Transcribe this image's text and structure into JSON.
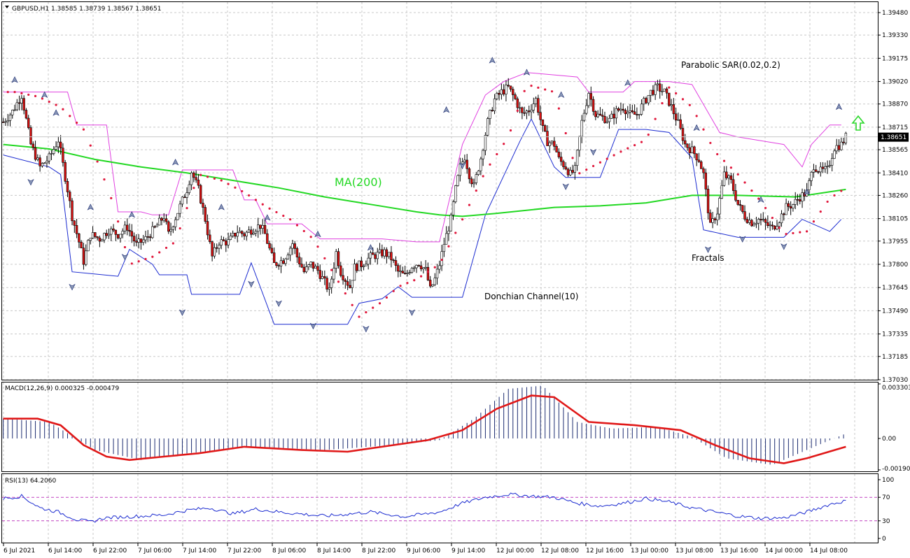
{
  "chart_data": {
    "type": "candlestick",
    "symbol_header": "GBPUSD,H1  1.38585 1.38739 1.38567 1.38651",
    "current_price_label": "1.38651",
    "current_price": 1.38651,
    "price_axis": {
      "ylim": [
        1.3703,
        1.3955
      ],
      "ticks": [
        "1.39480",
        "1.39330",
        "1.39175",
        "1.39020",
        "1.38870",
        "1.38715",
        "1.38565",
        "1.38410",
        "1.38260",
        "1.38105",
        "1.37955",
        "1.37800",
        "1.37645",
        "1.37490",
        "1.37335",
        "1.37185",
        "1.37030"
      ]
    },
    "x_tick_labels": [
      "6 Jul 2021",
      "6 Jul 14:00",
      "6 Jul 22:00",
      "7 Jul 06:00",
      "7 Jul 14:00",
      "7 Jul 22:00",
      "8 Jul 06:00",
      "8 Jul 14:00",
      "8 Jul 22:00",
      "9 Jul 06:00",
      "9 Jul 14:00",
      "12 Jul 00:00",
      "12 Jul 08:00",
      "12 Jul 16:00",
      "13 Jul 00:00",
      "13 Jul 08:00",
      "13 Jul 16:00",
      "14 Jul 00:00",
      "14 Jul 08:00"
    ],
    "annotations": {
      "ma": "MA(200)",
      "sar": "Parabolic SAR(0.02,0.2)",
      "fractals": "Fractals",
      "donchian": "Donchian Channel(10)"
    },
    "close_path": [
      [
        0,
        1.3875
      ],
      [
        4,
        1.3882
      ],
      [
        8,
        1.3893
      ],
      [
        12,
        1.386
      ],
      [
        16,
        1.3845
      ],
      [
        20,
        1.3851
      ],
      [
        24,
        1.3863
      ],
      [
        28,
        1.383
      ],
      [
        30,
        1.3812
      ],
      [
        33,
        1.3795
      ],
      [
        35,
        1.3782
      ],
      [
        38,
        1.38
      ],
      [
        42,
        1.3797
      ],
      [
        46,
        1.3803
      ],
      [
        50,
        1.38
      ],
      [
        54,
        1.3805
      ],
      [
        58,
        1.3793
      ],
      [
        62,
        1.3797
      ],
      [
        66,
        1.3804
      ],
      [
        70,
        1.3812
      ],
      [
        72,
        1.38
      ],
      [
        76,
        1.3815
      ],
      [
        80,
        1.383
      ],
      [
        82,
        1.3842
      ],
      [
        85,
        1.383
      ],
      [
        88,
        1.381
      ],
      [
        91,
        1.3785
      ],
      [
        94,
        1.3795
      ],
      [
        98,
        1.3795
      ],
      [
        102,
        1.3802
      ],
      [
        105,
        1.38
      ],
      [
        108,
        1.3803
      ],
      [
        112,
        1.3806
      ],
      [
        114,
        1.38
      ],
      [
        116,
        1.379
      ],
      [
        118,
        1.378
      ],
      [
        122,
        1.3783
      ],
      [
        126,
        1.3794
      ],
      [
        128,
        1.3785
      ],
      [
        131,
        1.3775
      ],
      [
        134,
        1.378
      ],
      [
        137,
        1.3776
      ],
      [
        140,
        1.3768
      ],
      [
        142,
        1.3762
      ],
      [
        145,
        1.3788
      ],
      [
        147,
        1.3775
      ],
      [
        149,
        1.377
      ],
      [
        151,
        1.3765
      ],
      [
        153,
        1.3778
      ],
      [
        156,
        1.378
      ],
      [
        160,
        1.3785
      ],
      [
        164,
        1.3787
      ],
      [
        166,
        1.3788
      ],
      [
        169,
        1.3784
      ],
      [
        172,
        1.3775
      ],
      [
        175,
        1.3772
      ],
      [
        178,
        1.3779
      ],
      [
        181,
        1.3781
      ],
      [
        184,
        1.3776
      ],
      [
        186,
        1.3763
      ],
      [
        188,
        1.377
      ],
      [
        190,
        1.378
      ],
      [
        192,
        1.3794
      ],
      [
        195,
        1.381
      ],
      [
        197,
        1.383
      ],
      [
        199,
        1.3845
      ],
      [
        201,
        1.3852
      ],
      [
        203,
        1.384
      ],
      [
        205,
        1.3832
      ],
      [
        208,
        1.3851
      ],
      [
        211,
        1.3875
      ],
      [
        214,
        1.389
      ],
      [
        217,
        1.3895
      ],
      [
        220,
        1.3898
      ],
      [
        223,
        1.389
      ],
      [
        226,
        1.388
      ],
      [
        229,
        1.3883
      ],
      [
        232,
        1.389
      ],
      [
        235,
        1.387
      ],
      [
        237,
        1.3862
      ],
      [
        240,
        1.386
      ],
      [
        242,
        1.385
      ],
      [
        245,
        1.3845
      ],
      [
        247,
        1.384
      ],
      [
        249,
        1.3843
      ],
      [
        252,
        1.3875
      ],
      [
        255,
        1.3895
      ],
      [
        258,
        1.388
      ],
      [
        261,
        1.3878
      ],
      [
        264,
        1.3876
      ],
      [
        267,
        1.3882
      ],
      [
        270,
        1.3885
      ],
      [
        273,
        1.388
      ],
      [
        276,
        1.388
      ],
      [
        279,
        1.3888
      ],
      [
        282,
        1.3895
      ],
      [
        285,
        1.3898
      ],
      [
        288,
        1.3895
      ],
      [
        291,
        1.3885
      ],
      [
        294,
        1.3874
      ],
      [
        297,
        1.386
      ],
      [
        300,
        1.3856
      ],
      [
        303,
        1.385
      ],
      [
        305,
        1.384
      ],
      [
        308,
        1.3805
      ],
      [
        311,
        1.3815
      ],
      [
        314,
        1.384
      ],
      [
        317,
        1.3835
      ],
      [
        320,
        1.382
      ],
      [
        323,
        1.3812
      ],
      [
        326,
        1.3808
      ],
      [
        329,
        1.381
      ],
      [
        332,
        1.3807
      ],
      [
        335,
        1.3804
      ],
      [
        338,
        1.381
      ],
      [
        341,
        1.3818
      ],
      [
        344,
        1.382
      ],
      [
        347,
        1.3825
      ],
      [
        350,
        1.3828
      ],
      [
        353,
        1.3846
      ],
      [
        356,
        1.3842
      ],
      [
        359,
        1.3843
      ],
      [
        362,
        1.3858
      ],
      [
        365,
        1.386
      ],
      [
        367,
        1.3865
      ]
    ],
    "ma200": [
      [
        0,
        1.386
      ],
      [
        20,
        1.3857
      ],
      [
        40,
        1.385
      ],
      [
        60,
        1.3845
      ],
      [
        80,
        1.3841
      ],
      [
        100,
        1.3836
      ],
      [
        120,
        1.3831
      ],
      [
        140,
        1.3825
      ],
      [
        160,
        1.382
      ],
      [
        180,
        1.3815
      ],
      [
        190,
        1.3813
      ],
      [
        200,
        1.3812
      ],
      [
        215,
        1.3814
      ],
      [
        240,
        1.3818
      ],
      [
        260,
        1.3819
      ],
      [
        280,
        1.3821
      ],
      [
        300,
        1.3826
      ],
      [
        320,
        1.3826
      ],
      [
        345,
        1.3825
      ],
      [
        367,
        1.383
      ]
    ],
    "donchian_upper": [
      [
        0,
        1.3895
      ],
      [
        28,
        1.3895
      ],
      [
        32,
        1.3873
      ],
      [
        45,
        1.3873
      ],
      [
        50,
        1.3815
      ],
      [
        60,
        1.3815
      ],
      [
        65,
        1.3813
      ],
      [
        72,
        1.3813
      ],
      [
        78,
        1.3843
      ],
      [
        100,
        1.3843
      ],
      [
        105,
        1.3823
      ],
      [
        110,
        1.3823
      ],
      [
        115,
        1.3807
      ],
      [
        130,
        1.3807
      ],
      [
        138,
        1.3797
      ],
      [
        165,
        1.3797
      ],
      [
        180,
        1.3795
      ],
      [
        190,
        1.3795
      ],
      [
        200,
        1.386
      ],
      [
        210,
        1.3893
      ],
      [
        218,
        1.3902
      ],
      [
        228,
        1.3908
      ],
      [
        250,
        1.3905
      ],
      [
        255,
        1.3895
      ],
      [
        270,
        1.3895
      ],
      [
        275,
        1.3902
      ],
      [
        290,
        1.3902
      ],
      [
        300,
        1.39
      ],
      [
        312,
        1.3868
      ],
      [
        320,
        1.3865
      ],
      [
        340,
        1.386
      ],
      [
        348,
        1.3845
      ],
      [
        352,
        1.386
      ],
      [
        360,
        1.3873
      ],
      [
        365,
        1.3873
      ]
    ],
    "donchian_lower": [
      [
        0,
        1.3853
      ],
      [
        20,
        1.3845
      ],
      [
        25,
        1.384
      ],
      [
        30,
        1.3775
      ],
      [
        50,
        1.3772
      ],
      [
        55,
        1.379
      ],
      [
        65,
        1.378
      ],
      [
        68,
        1.3773
      ],
      [
        80,
        1.3773
      ],
      [
        82,
        1.376
      ],
      [
        103,
        1.376
      ],
      [
        108,
        1.3781
      ],
      [
        118,
        1.374
      ],
      [
        150,
        1.374
      ],
      [
        155,
        1.3754
      ],
      [
        165,
        1.3757
      ],
      [
        172,
        1.3765
      ],
      [
        178,
        1.3758
      ],
      [
        200,
        1.3758
      ],
      [
        210,
        1.3813
      ],
      [
        225,
        1.3862
      ],
      [
        230,
        1.3877
      ],
      [
        240,
        1.3845
      ],
      [
        245,
        1.3838
      ],
      [
        260,
        1.3838
      ],
      [
        268,
        1.387
      ],
      [
        280,
        1.387
      ],
      [
        290,
        1.3868
      ],
      [
        300,
        1.3851
      ],
      [
        305,
        1.3803
      ],
      [
        320,
        1.3798
      ],
      [
        340,
        1.3798
      ],
      [
        348,
        1.381
      ],
      [
        360,
        1.3802
      ],
      [
        365,
        1.381
      ]
    ],
    "sar": [
      [
        5,
        1.3895
      ],
      [
        15,
        1.3892
      ],
      [
        25,
        1.3885
      ],
      [
        35,
        1.387
      ],
      [
        42,
        1.3845
      ],
      [
        48,
        1.382
      ],
      [
        55,
        1.378
      ],
      [
        65,
        1.3785
      ],
      [
        75,
        1.3795
      ],
      [
        85,
        1.384
      ],
      [
        95,
        1.3836
      ],
      [
        105,
        1.3828
      ],
      [
        115,
        1.3818
      ],
      [
        125,
        1.381
      ],
      [
        135,
        1.3797
      ],
      [
        155,
        1.3745
      ],
      [
        165,
        1.3755
      ],
      [
        172,
        1.3765
      ],
      [
        180,
        1.377
      ],
      [
        190,
        1.378
      ],
      [
        200,
        1.381
      ],
      [
        210,
        1.3842
      ],
      [
        220,
        1.3865
      ],
      [
        228,
        1.39
      ],
      [
        240,
        1.3895
      ],
      [
        250,
        1.384
      ],
      [
        260,
        1.3848
      ],
      [
        270,
        1.3856
      ],
      [
        280,
        1.3863
      ],
      [
        290,
        1.3898
      ],
      [
        300,
        1.3885
      ],
      [
        310,
        1.3855
      ],
      [
        320,
        1.384
      ],
      [
        330,
        1.3822
      ],
      [
        340,
        1.38
      ],
      [
        350,
        1.3802
      ],
      [
        360,
        1.3824
      ],
      [
        366,
        1.383
      ]
    ],
    "fractal_highs": [
      [
        5,
        1.39
      ],
      [
        18,
        1.389
      ],
      [
        23,
        1.3878
      ],
      [
        38,
        1.3815
      ],
      [
        56,
        1.381
      ],
      [
        75,
        1.3845
      ],
      [
        95,
        1.3815
      ],
      [
        115,
        1.3808
      ],
      [
        137,
        1.3797
      ],
      [
        160,
        1.3788
      ],
      [
        193,
        1.388
      ],
      [
        213,
        1.3913
      ],
      [
        228,
        1.3905
      ],
      [
        243,
        1.389
      ],
      [
        272,
        1.3898
      ],
      [
        302,
        1.3868
      ],
      [
        330,
        1.382
      ],
      [
        350,
        1.3825
      ],
      [
        364,
        1.3882
      ]
    ],
    "fractal_lows": [
      [
        12,
        1.3838
      ],
      [
        30,
        1.3768
      ],
      [
        53,
        1.3788
      ],
      [
        78,
        1.3751
      ],
      [
        108,
        1.377
      ],
      [
        120,
        1.3757
      ],
      [
        135,
        1.3742
      ],
      [
        158,
        1.374
      ],
      [
        178,
        1.3751
      ],
      [
        200,
        1.3849
      ],
      [
        245,
        1.3835
      ],
      [
        257,
        1.3858
      ],
      [
        307,
        1.3793
      ],
      [
        322,
        1.38
      ],
      [
        340,
        1.3795
      ]
    ],
    "macd": {
      "label": "MACD(12,26,9) 0.000325 -0.000479",
      "axis_labels": [
        "0.003303",
        "0.00",
        "-0.001902"
      ],
      "hist_path": [
        [
          0,
          0.0012
        ],
        [
          20,
          0.001
        ],
        [
          40,
          -0.0007
        ],
        [
          60,
          -0.0013
        ],
        [
          80,
          -0.0009
        ],
        [
          110,
          -0.0005
        ],
        [
          140,
          -0.0007
        ],
        [
          170,
          -0.0004
        ],
        [
          190,
          -0.0001
        ],
        [
          205,
          0.0012
        ],
        [
          220,
          0.003
        ],
        [
          235,
          0.0032
        ],
        [
          250,
          0.001
        ],
        [
          265,
          0.0006
        ],
        [
          285,
          0.0007
        ],
        [
          300,
          0.0001
        ],
        [
          315,
          -0.0012
        ],
        [
          335,
          -0.0016
        ],
        [
          355,
          -0.0004
        ],
        [
          367,
          0.0003
        ]
      ],
      "signal_path": [
        [
          0,
          0.0012
        ],
        [
          15,
          0.0012
        ],
        [
          25,
          0.0008
        ],
        [
          35,
          -0.0004
        ],
        [
          45,
          -0.0011
        ],
        [
          55,
          -0.0013
        ],
        [
          70,
          -0.0011
        ],
        [
          85,
          -0.0009
        ],
        [
          105,
          -0.0005
        ],
        [
          130,
          -0.0007
        ],
        [
          150,
          -0.0008
        ],
        [
          170,
          -0.0004
        ],
        [
          185,
          -0.0001
        ],
        [
          200,
          0.0005
        ],
        [
          215,
          0.0018
        ],
        [
          230,
          0.0026
        ],
        [
          240,
          0.0025
        ],
        [
          255,
          0.001
        ],
        [
          275,
          0.0008
        ],
        [
          295,
          0.0005
        ],
        [
          310,
          -0.0004
        ],
        [
          325,
          -0.0012
        ],
        [
          340,
          -0.0015
        ],
        [
          350,
          -0.0012
        ],
        [
          367,
          -0.0005
        ]
      ]
    },
    "rsi": {
      "label": "RSI(13) 64.2060",
      "axis_labels": [
        "100",
        "70",
        "30",
        "0"
      ],
      "levels": [
        70,
        30
      ],
      "path": [
        [
          0,
          68
        ],
        [
          8,
          72
        ],
        [
          16,
          52
        ],
        [
          24,
          45
        ],
        [
          32,
          32
        ],
        [
          38,
          28
        ],
        [
          44,
          35
        ],
        [
          60,
          38
        ],
        [
          70,
          40
        ],
        [
          80,
          48
        ],
        [
          90,
          52
        ],
        [
          100,
          42
        ],
        [
          110,
          50
        ],
        [
          120,
          45
        ],
        [
          140,
          38
        ],
        [
          160,
          45
        ],
        [
          175,
          37
        ],
        [
          190,
          45
        ],
        [
          200,
          60
        ],
        [
          210,
          70
        ],
        [
          220,
          75
        ],
        [
          230,
          72
        ],
        [
          240,
          70
        ],
        [
          250,
          60
        ],
        [
          260,
          55
        ],
        [
          270,
          60
        ],
        [
          280,
          68
        ],
        [
          290,
          62
        ],
        [
          300,
          52
        ],
        [
          310,
          45
        ],
        [
          320,
          38
        ],
        [
          330,
          34
        ],
        [
          340,
          35
        ],
        [
          350,
          45
        ],
        [
          360,
          58
        ],
        [
          367,
          64
        ]
      ]
    }
  }
}
